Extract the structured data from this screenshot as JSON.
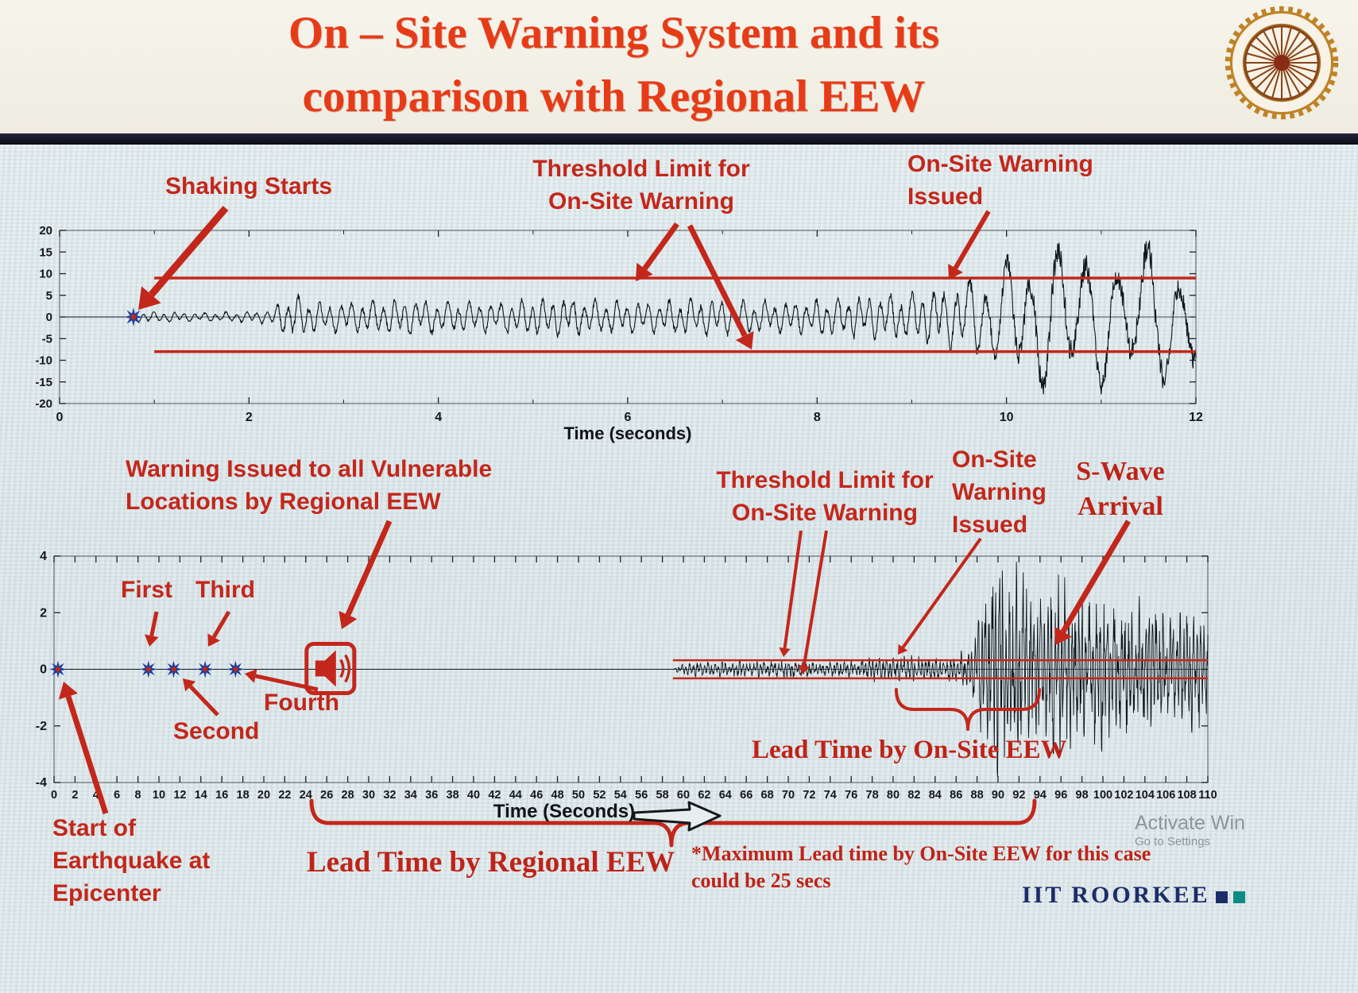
{
  "title": {
    "line1": "On – Site Warning System and its",
    "line2": "comparison with Regional EEW"
  },
  "colors": {
    "title_red": "#e73b17",
    "annotation_red": "#c3271b",
    "threshold_red": "#c3271b",
    "star_blue": "#1f3d99",
    "brand_navy": "#1b2d69",
    "brand_teal": "#0f8b84",
    "divider_dark": "#14141e"
  },
  "ann": {
    "shaking_starts": "Shaking Starts",
    "threshold_line1": "Threshold Limit for",
    "threshold_line2": "On-Site Warning",
    "onsite_top_line1": "On-Site Warning",
    "onsite_top_line2": "Issued",
    "onsite_b1": "On-Site",
    "onsite_b2": "Warning",
    "onsite_b3": "Issued",
    "regional_line1": "Warning Issued to all Vulnerable",
    "regional_line2": "Locations by Regional EEW",
    "first": "First",
    "second": "Second",
    "third": "Third",
    "fourth": "Fourth",
    "swave_line1": "S-Wave",
    "swave_line2": "Arrival",
    "lead_onsite": "Lead Time by On-Site EEW",
    "lead_regional": "Lead Time by Regional EEW",
    "max_lead_line1": "*Maximum Lead time by On-Site EEW for this case",
    "max_lead_line2": "could be 25 secs",
    "start_eq_line1": "Start of",
    "start_eq_line2": "Earthquake at",
    "start_eq_line3": "Epicenter"
  },
  "footer": {
    "brand": "IIT ROORKEE",
    "watermark_line1": "Activate Win",
    "watermark_line2": "Go to Settings"
  },
  "chart_data": [
    {
      "type": "line",
      "name": "on-site-warning-seismogram",
      "title": "",
      "xlabel": "Time (seconds)",
      "ylabel": "",
      "xlim": [
        0,
        12
      ],
      "ylim": [
        -20,
        20
      ],
      "xticks": [
        0,
        2,
        4,
        6,
        8,
        10,
        12
      ],
      "yticks": [
        20,
        15,
        10,
        5,
        0,
        -5,
        -10,
        -15,
        -20
      ],
      "grid": false,
      "threshold": {
        "upper": 9,
        "lower": -8,
        "start_x": 1.0
      },
      "marker": {
        "type": "star",
        "x": 0.78,
        "y": 0,
        "meaning": "Shaking Starts"
      },
      "signal": {
        "seed": 7,
        "jitter": 0.18,
        "envelope": [
          [
            0,
            0
          ],
          [
            0.74,
            0
          ],
          [
            0.8,
            1.1
          ],
          [
            1.6,
            0.9
          ],
          [
            2.2,
            1.4
          ],
          [
            2.45,
            4.6
          ],
          [
            2.8,
            3.0
          ],
          [
            3.6,
            3.9
          ],
          [
            4.4,
            3.1
          ],
          [
            5.2,
            4.1
          ],
          [
            6.0,
            3.4
          ],
          [
            6.8,
            3.9
          ],
          [
            7.6,
            3.3
          ],
          [
            8.4,
            4.3
          ],
          [
            9.0,
            4.8
          ],
          [
            9.5,
            7.0
          ],
          [
            10.0,
            12.0
          ],
          [
            10.6,
            17.0
          ],
          [
            11.1,
            13.5
          ],
          [
            11.5,
            16.0
          ],
          [
            12,
            13.0
          ]
        ],
        "freq_points": [
          [
            0,
            9
          ],
          [
            9.3,
            9
          ],
          [
            9.9,
            4.5
          ],
          [
            10.6,
            3.2
          ],
          [
            12,
            3.0
          ]
        ]
      },
      "annotations": [
        {
          "label": "Shaking Starts",
          "x": 0.78
        },
        {
          "label": "Threshold Limit for On-Site Warning",
          "y_values": [
            9,
            -8
          ]
        },
        {
          "label": "On-Site Warning Issued",
          "x": 9.4
        }
      ]
    },
    {
      "type": "line",
      "name": "regional-eew-seismogram",
      "title": "",
      "xlabel": "Time (Seconds)",
      "ylabel": "",
      "xlim": [
        0,
        110
      ],
      "xtick_step": 2,
      "ylim": [
        -4,
        4
      ],
      "yticks": [
        4,
        2,
        0,
        -2,
        -4
      ],
      "grid": false,
      "threshold": {
        "upper": 0.32,
        "lower": -0.32,
        "start_x": 59
      },
      "markers": {
        "epicenter": {
          "x": 0,
          "meaning": "Start of Earthquake at Epicenter"
        },
        "stations": [
          {
            "label": "First",
            "x": 9
          },
          {
            "label": "Second",
            "x": 11.4
          },
          {
            "label": "Third",
            "x": 14.4
          },
          {
            "label": "Fourth",
            "x": 17.3
          }
        ],
        "regional_warning": {
          "x": 24,
          "meaning": "Warning Issued to all Vulnerable Locations by Regional EEW"
        }
      },
      "signal": {
        "seed": 13,
        "jitter": 0.55,
        "envelope": [
          [
            0,
            0
          ],
          [
            59,
            0
          ],
          [
            60,
            0.16
          ],
          [
            64,
            0.2
          ],
          [
            70,
            0.24
          ],
          [
            74,
            0.19
          ],
          [
            78,
            0.28
          ],
          [
            81,
            0.34
          ],
          [
            84,
            0.3
          ],
          [
            86,
            0.33
          ],
          [
            87.5,
            0.6
          ],
          [
            88.5,
            1.9
          ],
          [
            90,
            3.1
          ],
          [
            91,
            2.1
          ],
          [
            92.5,
            2.7
          ],
          [
            94,
            1.9
          ],
          [
            96,
            2.3
          ],
          [
            98,
            1.7
          ],
          [
            100,
            2.0
          ],
          [
            102,
            1.5
          ],
          [
            104,
            1.8
          ],
          [
            106,
            1.3
          ],
          [
            108,
            1.6
          ],
          [
            110,
            1.3
          ]
        ],
        "freq_points": [
          [
            0,
            3
          ],
          [
            110,
            3
          ]
        ]
      },
      "annotations": [
        {
          "label": "Threshold Limit for On-Site Warning",
          "y_values": [
            0.32,
            -0.32
          ]
        },
        {
          "label": "On-Site Warning Issued",
          "x": 80
        },
        {
          "label": "S-Wave Arrival",
          "x": 93
        },
        {
          "label": "Lead Time by On-Site EEW",
          "x_range": [
            80,
            93.5
          ]
        },
        {
          "label": "Lead Time by Regional EEW",
          "x_range": [
            24,
            93.5
          ]
        },
        {
          "label": "*Maximum Lead time by On-Site EEW for this case could be 25 secs"
        }
      ]
    }
  ]
}
